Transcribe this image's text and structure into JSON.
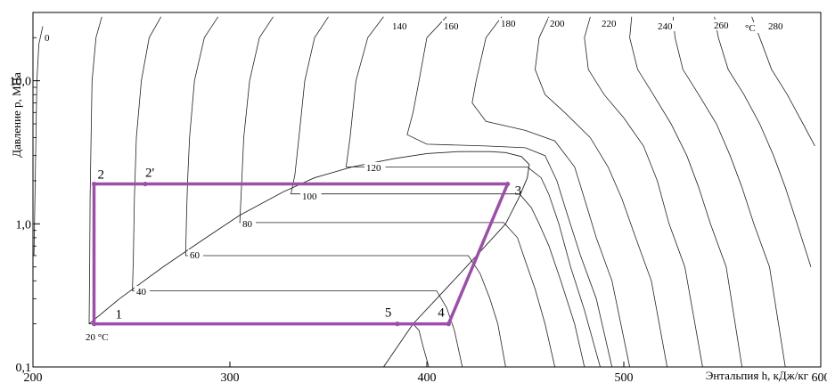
{
  "chart_data": {
    "type": "line",
    "title": "",
    "xlabel": "Энтальпия h, кДж/кг",
    "ylabel": "Давление p, МПа",
    "xlim": [
      200,
      600
    ],
    "ylim": [
      0.1,
      30
    ],
    "y_scale": "log",
    "x_ticks": [
      "200",
      "300",
      "400",
      "500",
      "600"
    ],
    "y_ticks": [
      {
        "value": 0.1,
        "label": "0,1"
      },
      {
        "value": 1.0,
        "label": "1,0"
      },
      {
        "value": 10.0,
        "label": "10,0"
      }
    ],
    "grid": false,
    "saturation_dome": {
      "liquid": [
        [
          228.5,
          0.2
        ],
        [
          244,
          0.3
        ],
        [
          266,
          0.5
        ],
        [
          286,
          0.77
        ],
        [
          305,
          1.15
        ],
        [
          327,
          1.67
        ],
        [
          343,
          2.1
        ],
        [
          362,
          2.5
        ],
        [
          383,
          2.85
        ],
        [
          400,
          3.1
        ],
        [
          416,
          3.2
        ],
        [
          432,
          3.2
        ]
      ],
      "vapor": [
        [
          378,
          0.1
        ],
        [
          393,
          0.2
        ],
        [
          405,
          0.3
        ],
        [
          420,
          0.5
        ],
        [
          440,
          1.0
        ],
        [
          447,
          1.55
        ],
        [
          451,
          2.1
        ],
        [
          452,
          2.6
        ],
        [
          448,
          2.95
        ],
        [
          440,
          3.15
        ],
        [
          432,
          3.2
        ]
      ]
    },
    "isotherms": [
      {
        "label": "0",
        "points": [
          [
            205,
            24
          ],
          [
            203,
            18
          ],
          [
            202,
            10
          ],
          [
            201.5,
            4
          ],
          [
            201,
            1.5
          ],
          [
            200.5,
            0.6
          ]
        ]
      },
      {
        "label": "20 °C",
        "points": [
          [
            235,
            28
          ],
          [
            232,
            20
          ],
          [
            230,
            10
          ],
          [
            229.5,
            4
          ],
          [
            229,
            1.5
          ],
          [
            228.8,
            0.5
          ],
          [
            228.5,
            0.2
          ],
          [
            289,
            0.2
          ],
          [
            350,
            0.2
          ],
          [
            393,
            0.2
          ],
          [
            396,
            0.18
          ],
          [
            398,
            0.14
          ],
          [
            401,
            0.1
          ]
        ]
      },
      {
        "label": "40",
        "points": [
          [
            265,
            28
          ],
          [
            259,
            20
          ],
          [
            255,
            10
          ],
          [
            252.5,
            4
          ],
          [
            251.5,
            1.5
          ],
          [
            251,
            0.6
          ],
          [
            250.5,
            0.34
          ],
          [
            300,
            0.34
          ],
          [
            360,
            0.34
          ],
          [
            405,
            0.34
          ],
          [
            410,
            0.26
          ],
          [
            414,
            0.18
          ],
          [
            418,
            0.1
          ]
        ]
      },
      {
        "label": "60",
        "points": [
          [
            294,
            28
          ],
          [
            287,
            20
          ],
          [
            282,
            10
          ],
          [
            279.5,
            4
          ],
          [
            278.5,
            2
          ],
          [
            278,
            1.2
          ],
          [
            277.5,
            0.6
          ],
          [
            327,
            0.6
          ],
          [
            380,
            0.6
          ],
          [
            421,
            0.6
          ],
          [
            427,
            0.45
          ],
          [
            432,
            0.3
          ],
          [
            436,
            0.2
          ],
          [
            440,
            0.1
          ]
        ]
      },
      {
        "label": "80",
        "points": [
          [
            322,
            28
          ],
          [
            315,
            20
          ],
          [
            310,
            10
          ],
          [
            307,
            4
          ],
          [
            306,
            2
          ],
          [
            305,
            1.02
          ],
          [
            350,
            1.02
          ],
          [
            400,
            1.02
          ],
          [
            439,
            1.02
          ],
          [
            446,
            0.8
          ],
          [
            450,
            0.55
          ],
          [
            455,
            0.35
          ],
          [
            460,
            0.2
          ],
          [
            465,
            0.1
          ]
        ]
      },
      {
        "label": "100",
        "points": [
          [
            350,
            28
          ],
          [
            343,
            20
          ],
          [
            338,
            10
          ],
          [
            335,
            4
          ],
          [
            333,
            2.2
          ],
          [
            331,
            1.62
          ],
          [
            385,
            1.62
          ],
          [
            418,
            1.62
          ],
          [
            447,
            1.62
          ],
          [
            453,
            1.3
          ],
          [
            457,
            1.0
          ],
          [
            462,
            0.7
          ],
          [
            468,
            0.4
          ],
          [
            475,
            0.2
          ],
          [
            480,
            0.1
          ]
        ]
      },
      {
        "label": "120",
        "points": [
          [
            378,
            28
          ],
          [
            370,
            20
          ],
          [
            364,
            10
          ],
          [
            361,
            4
          ],
          [
            359,
            2.5
          ],
          [
            430,
            2.5
          ],
          [
            451,
            2.5
          ],
          [
            458,
            2.1
          ],
          [
            462,
            1.6
          ],
          [
            467,
            1.0
          ],
          [
            473,
            0.5
          ],
          [
            480,
            0.25
          ],
          [
            488,
            0.1
          ]
        ]
      },
      {
        "label": "140",
        "points": [
          [
            410,
            28
          ],
          [
            400,
            20
          ],
          [
            396,
            10
          ],
          [
            393,
            6
          ],
          [
            390,
            4.2
          ],
          [
            400,
            3.6
          ],
          [
            430,
            3.5
          ],
          [
            450,
            3.4
          ],
          [
            460,
            3.0
          ],
          [
            466,
            2.0
          ],
          [
            471,
            1.2
          ],
          [
            478,
            0.6
          ],
          [
            486,
            0.3
          ],
          [
            494,
            0.1
          ]
        ]
      },
      {
        "label": "160",
        "points": [
          [
            438,
            28
          ],
          [
            430,
            20
          ],
          [
            425,
            10
          ],
          [
            423,
            7
          ],
          [
            430,
            5.2
          ],
          [
            450,
            4.5
          ],
          [
            465,
            3.8
          ],
          [
            475,
            2.5
          ],
          [
            480,
            1.5
          ],
          [
            486,
            0.8
          ],
          [
            494,
            0.4
          ],
          [
            503,
            0.1
          ]
        ]
      },
      {
        "label": "180",
        "points": [
          [
            462,
            28
          ],
          [
            457,
            20
          ],
          [
            455,
            12
          ],
          [
            460,
            8
          ],
          [
            470,
            6
          ],
          [
            483,
            4
          ],
          [
            492,
            2.5
          ],
          [
            499,
            1.5
          ],
          [
            506,
            0.8
          ],
          [
            514,
            0.4
          ],
          [
            522,
            0.1
          ]
        ]
      },
      {
        "label": "200",
        "points": [
          [
            483,
            28
          ],
          [
            480,
            20
          ],
          [
            482,
            12
          ],
          [
            490,
            8
          ],
          [
            500,
            5.5
          ],
          [
            510,
            3.5
          ],
          [
            517,
            2
          ],
          [
            523,
            1
          ],
          [
            531,
            0.5
          ],
          [
            540,
            0.1
          ]
        ]
      },
      {
        "label": "220",
        "points": [
          [
            504,
            28
          ],
          [
            503,
            20
          ],
          [
            507,
            12
          ],
          [
            515,
            8
          ],
          [
            524,
            5
          ],
          [
            532,
            3
          ],
          [
            538,
            1.8
          ],
          [
            544,
            1
          ],
          [
            552,
            0.5
          ],
          [
            560,
            0.1
          ]
        ]
      },
      {
        "label": "240",
        "points": [
          [
            525,
            28
          ],
          [
            526,
            20
          ],
          [
            530,
            12
          ],
          [
            538,
            8
          ],
          [
            547,
            5
          ],
          [
            554,
            3
          ],
          [
            560,
            1.8
          ],
          [
            566,
            1
          ],
          [
            574,
            0.5
          ],
          [
            582,
            0.1
          ]
        ]
      },
      {
        "label": "260",
        "points": [
          [
            546,
            28
          ],
          [
            548,
            20
          ],
          [
            553,
            12
          ],
          [
            561,
            8
          ],
          [
            569,
            5
          ],
          [
            576,
            3
          ],
          [
            582,
            1.8
          ],
          [
            588,
            1
          ],
          [
            595,
            0.5
          ]
        ]
      },
      {
        "label": "280",
        "points": [
          [
            565,
            28
          ],
          [
            569,
            20
          ],
          [
            575,
            12
          ],
          [
            583,
            8
          ],
          [
            591,
            5
          ],
          [
            597,
            3.5
          ]
        ]
      },
      {
        "label": "°C",
        "points": []
      }
    ],
    "cycle": {
      "name": "",
      "color": "#9b4fa8",
      "path": [
        [
          231,
          0.2
        ],
        [
          231,
          1.9
        ],
        [
          441,
          1.9
        ],
        [
          411,
          0.2
        ],
        [
          231,
          0.2
        ]
      ],
      "points": [
        {
          "label": "1",
          "h": 231,
          "p": 0.2
        },
        {
          "label": "2",
          "h": 231,
          "p": 1.9
        },
        {
          "label": "2'",
          "h": 257,
          "p": 1.9
        },
        {
          "label": "3",
          "h": 441,
          "p": 1.9
        },
        {
          "label": "4",
          "h": 411,
          "p": 0.2
        },
        {
          "label": "5",
          "h": 385,
          "p": 0.2
        }
      ]
    }
  }
}
